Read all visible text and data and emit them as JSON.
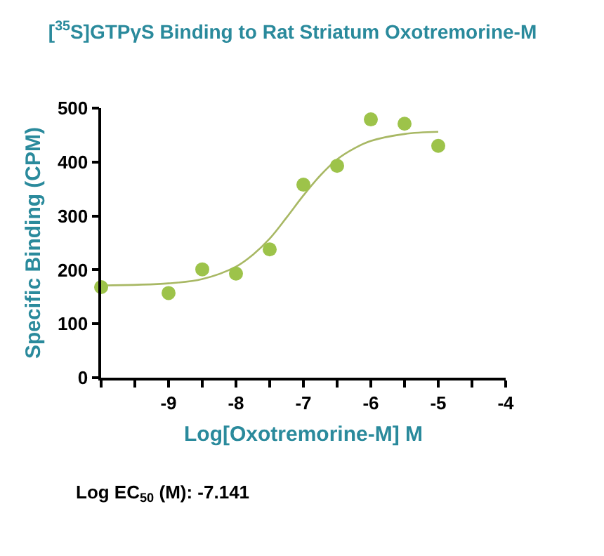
{
  "chart_data": {
    "type": "scatter",
    "title": "[$^{35}$S]GTPγS Binding to Rat Striatum Oxotremorine-M",
    "xlabel": "Log[Oxotremorine-M] M",
    "ylabel": "Specific Binding (CPM)",
    "x": [
      -10,
      -9,
      -8.5,
      -8,
      -7.5,
      -7,
      -6.5,
      -6,
      -5.5,
      -5
    ],
    "series": [
      {
        "color": "#9dc34a",
        "marker": "circle",
        "values": [
          168,
          157,
          201,
          193,
          238,
          358,
          393,
          479,
          471,
          430
        ]
      },
      {
        "type": "line",
        "color": "#a8b864",
        "marker": "none",
        "x": [
          -10,
          -9,
          -8.5,
          -8,
          -7.75,
          -7.5,
          -7.25,
          -7,
          -6.75,
          -6.5,
          -6.25,
          -6,
          -5.5,
          -5
        ],
        "values": [
          171,
          175,
          183,
          206,
          228,
          258,
          297,
          338,
          375,
          405,
          425,
          439,
          452,
          456
        ]
      }
    ],
    "xlim": [
      -10,
      -4
    ],
    "xticks": [
      {
        "value": -10,
        "label": null
      },
      {
        "value": -9.5,
        "label": null
      },
      -9,
      {
        "value": -8.5,
        "label": null
      },
      -8,
      {
        "value": -7.5,
        "label": null
      },
      -7,
      {
        "value": -6.5,
        "label": null
      },
      -6,
      {
        "value": -5.5,
        "label": null
      },
      -5,
      {
        "value": -4.5,
        "label": null
      },
      -4
    ],
    "ylim": [
      0,
      500
    ],
    "yticks": [
      0,
      100,
      200,
      300,
      400,
      500
    ],
    "grid": false,
    "annotations": [
      "Log EC$_{50}$ (M): -7.141"
    ]
  }
}
